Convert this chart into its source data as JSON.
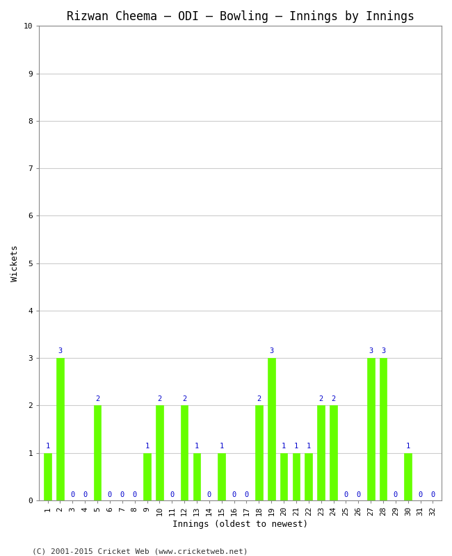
{
  "title": "Rizwan Cheema – ODI – Bowling – Innings by Innings",
  "xlabel": "Innings (oldest to newest)",
  "ylabel": "Wickets",
  "footnote": "(C) 2001-2015 Cricket Web (www.cricketweb.net)",
  "innings": [
    1,
    2,
    3,
    4,
    5,
    6,
    7,
    8,
    9,
    10,
    11,
    12,
    13,
    14,
    15,
    16,
    17,
    18,
    19,
    20,
    21,
    22,
    23,
    24,
    25,
    26,
    27,
    28,
    29,
    30,
    31,
    32
  ],
  "wickets": [
    1,
    3,
    0,
    0,
    2,
    0,
    0,
    0,
    1,
    2,
    0,
    2,
    1,
    0,
    1,
    0,
    0,
    2,
    3,
    1,
    1,
    1,
    2,
    2,
    0,
    0,
    3,
    3,
    0,
    1,
    0,
    0
  ],
  "bar_color": "#66ff00",
  "bar_edge_color": "#66ff00",
  "label_color": "#0000cc",
  "background_color": "#ffffff",
  "plot_bg_color": "#ffffff",
  "ylim": [
    0,
    10
  ],
  "yticks": [
    0,
    1,
    2,
    3,
    4,
    5,
    6,
    7,
    8,
    9,
    10
  ],
  "grid_color": "#cccccc",
  "title_fontsize": 12,
  "axis_label_fontsize": 9,
  "tick_fontsize": 8,
  "label_fontsize": 7.5,
  "footnote_fontsize": 8,
  "bar_width": 0.6
}
